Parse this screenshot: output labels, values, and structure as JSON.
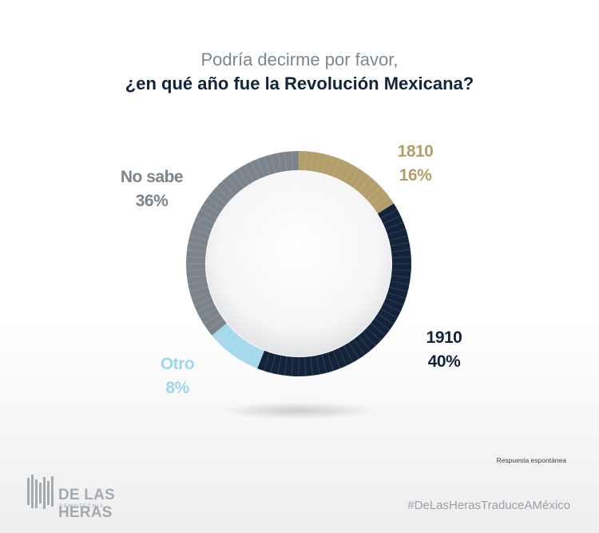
{
  "title": {
    "line1": "Podría decirme por favor,",
    "line2": "¿en qué año fue la Revolución Mexicana?"
  },
  "chart_data": {
    "type": "pie",
    "title": "Podría decirme por favor, ¿en qué año fue la Revolución Mexicana?",
    "categories": [
      "1810",
      "1910",
      "Otro",
      "No sabe"
    ],
    "values": [
      16,
      40,
      8,
      36
    ],
    "value_labels": [
      "16%",
      "40%",
      "8%",
      "36%"
    ],
    "colors": [
      "#b29f6b",
      "#13233a",
      "#a7d9ec",
      "#7b848b"
    ],
    "label_colors": [
      "#b29f6b",
      "#13233a",
      "#9ed6ea",
      "#7b848b"
    ],
    "style": "donut",
    "start": "top, clockwise"
  },
  "note": "Respuesta espontánea",
  "hashtag": "#DeLasHerasTraduceAMéxico",
  "logo": {
    "name": "DE LAS HERAS",
    "subtitle": "DEMOTECNIA",
    "icon": "delasheras-logo-icon"
  }
}
